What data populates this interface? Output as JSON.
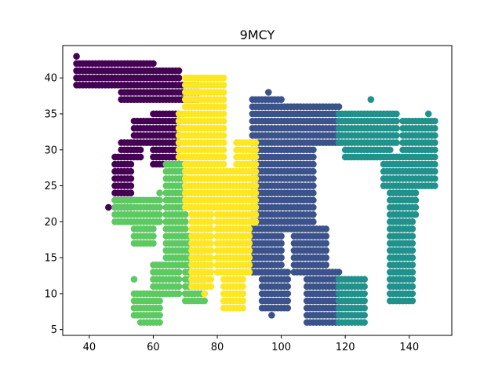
{
  "chart_data": {
    "type": "scatter",
    "title": "9MCY",
    "xlabel": "",
    "ylabel": "",
    "xlim": [
      31.7,
      153.3
    ],
    "ylim": [
      4.2,
      44.5
    ],
    "xticks": [
      40,
      60,
      80,
      100,
      120,
      140
    ],
    "yticks": [
      5,
      10,
      15,
      20,
      25,
      30,
      35,
      40
    ],
    "grid": false,
    "legend": "none",
    "series": [
      {
        "color": "#440154",
        "description": "the cluster forming the top arc of the 9",
        "regions": [
          {
            "xs": [
              36,
              60
            ],
            "ys": [
              39,
              42
            ]
          },
          {
            "xs": [
              38,
              68
            ],
            "ys": [
              39,
              41
            ]
          },
          {
            "xs": [
              50,
              74
            ],
            "ys": [
              37,
              39
            ]
          },
          {
            "xs": [
              54,
              64
            ],
            "ys": [
              31,
              34
            ]
          },
          {
            "xs": [
              50,
              56
            ],
            "ys": [
              29,
              31
            ]
          },
          {
            "xs": [
              48,
              53
            ],
            "ys": [
              22,
              29
            ]
          },
          {
            "xs": [
              60,
              68
            ],
            "ys": [
              28,
              35
            ]
          }
        ],
        "points": [
          {
            "x": 36,
            "y": 43
          },
          {
            "x": 46,
            "y": 22
          }
        ]
      },
      {
        "color": "#3b528b",
        "description": "the cluster forming the M right stroke and the C",
        "regions": [
          {
            "xs": [
              91,
              100
            ],
            "ys": [
              13,
              37
            ]
          },
          {
            "xs": [
              100,
              118
            ],
            "ys": [
              31,
              36
            ]
          },
          {
            "xs": [
              100,
              110
            ],
            "ys": [
              19,
              31
            ]
          },
          {
            "xs": [
              104,
              114
            ],
            "ys": [
              13,
              19
            ]
          },
          {
            "xs": [
              94,
              102
            ],
            "ys": [
              8,
              13
            ]
          },
          {
            "xs": [
              108,
              118
            ],
            "ys": [
              6,
              13
            ]
          }
        ],
        "points": [
          {
            "x": 97,
            "y": 7
          },
          {
            "x": 96,
            "y": 38
          },
          {
            "x": 90,
            "y": 14
          }
        ]
      },
      {
        "color": "#21918c",
        "description": "the cluster forming the Y",
        "regions": [
          {
            "xs": [
              118,
              136
            ],
            "ys": [
              31,
              35
            ]
          },
          {
            "xs": [
              120,
              134
            ],
            "ys": [
              29,
              31
            ]
          },
          {
            "xs": [
              132,
              138
            ],
            "ys": [
              25,
              29
            ]
          },
          {
            "xs": [
              138,
              148
            ],
            "ys": [
              25,
              34
            ]
          },
          {
            "xs": [
              134,
              142
            ],
            "ys": [
              21,
              25
            ]
          },
          {
            "xs": [
              134,
              141
            ],
            "ys": [
              9,
              21
            ]
          },
          {
            "xs": [
              118,
              126
            ],
            "ys": [
              6,
              12
            ]
          }
        ],
        "points": [
          {
            "x": 128,
            "y": 37
          },
          {
            "x": 146,
            "y": 35
          }
        ]
      },
      {
        "color": "#5ec962",
        "description": "the cluster forming the 9 stem and lower loop",
        "regions": [
          {
            "xs": [
              64,
              70
            ],
            "ys": [
              14,
              28
            ]
          },
          {
            "xs": [
              60,
              68
            ],
            "ys": [
              10,
              14
            ]
          },
          {
            "xs": [
              54,
              62
            ],
            "ys": [
              7,
              10
            ]
          },
          {
            "xs": [
              56,
              62
            ],
            "ys": [
              6,
              8
            ]
          },
          {
            "xs": [
              48,
              62
            ],
            "ys": [
              20,
              23
            ]
          },
          {
            "xs": [
              54,
              60
            ],
            "ys": [
              17,
              20
            ]
          },
          {
            "xs": [
              70,
              76
            ],
            "ys": [
              9,
              18
            ]
          }
        ],
        "points": [
          {
            "x": 54,
            "y": 12
          },
          {
            "x": 62,
            "y": 24
          }
        ]
      },
      {
        "color": "#fde725",
        "description": "the cluster forming the M left stroke",
        "regions": [
          {
            "xs": [
              70,
              82
            ],
            "ys": [
              22,
              40
            ]
          },
          {
            "xs": [
              68,
              80
            ],
            "ys": [
              29,
              35
            ]
          },
          {
            "xs": [
              72,
              78
            ],
            "ys": [
              11,
              22
            ]
          },
          {
            "xs": [
              80,
              90
            ],
            "ys": [
              13,
              27
            ]
          },
          {
            "xs": [
              82,
              88
            ],
            "ys": [
              8,
              13
            ]
          },
          {
            "xs": [
              86,
              92
            ],
            "ys": [
              20,
              31
            ]
          }
        ],
        "points": [
          {
            "x": 76,
            "y": 10
          },
          {
            "x": 90,
            "y": 31
          }
        ]
      }
    ]
  }
}
